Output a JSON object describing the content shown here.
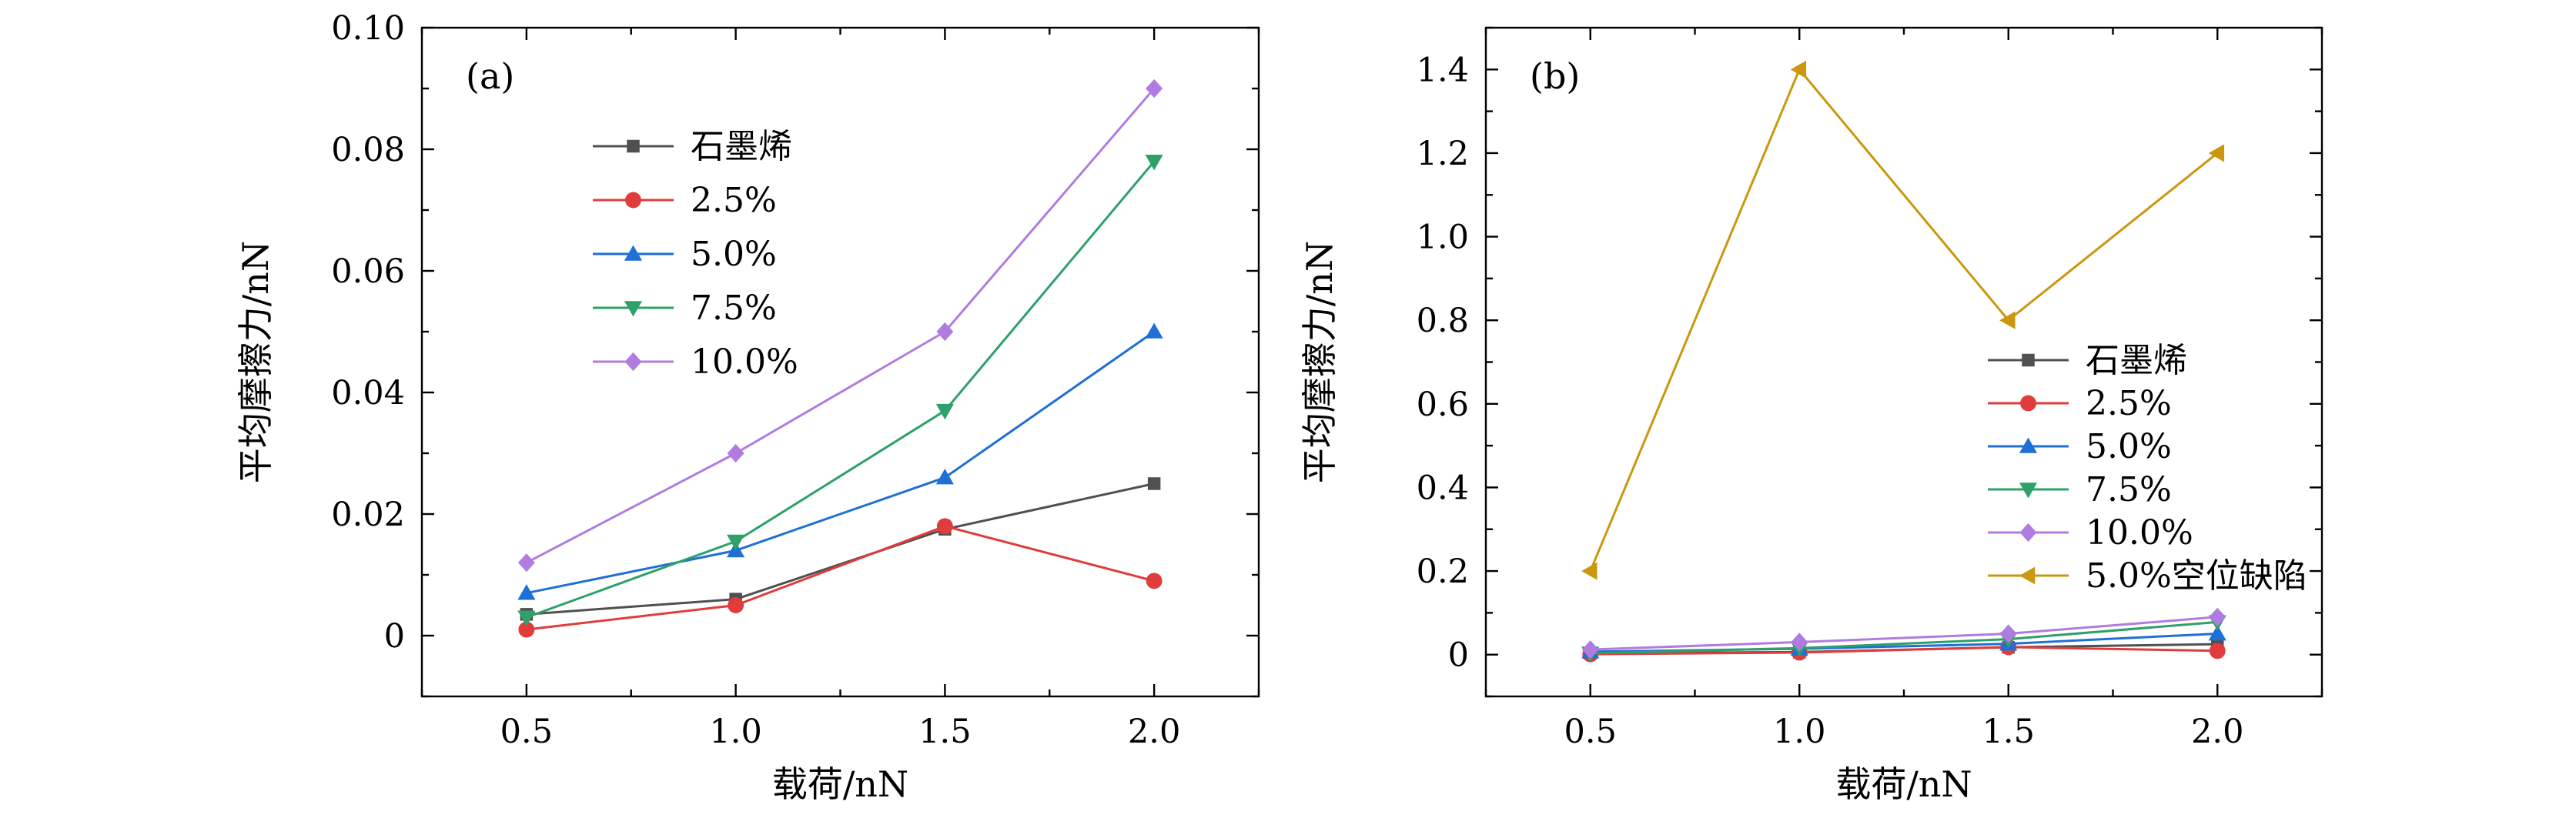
{
  "chart_data": [
    {
      "type": "line",
      "panel_label": "(a)",
      "xlabel": "载荷/nN",
      "ylabel": "平均摩擦力/nN",
      "x": [
        0.5,
        1.0,
        1.5,
        2.0
      ],
      "xticks": [
        "0.5",
        "1.0",
        "1.5",
        "2.0"
      ],
      "xlim": [
        0.25,
        2.25
      ],
      "yticks": [
        "0",
        "0.02",
        "0.04",
        "0.06",
        "0.08",
        "0.10"
      ],
      "ytick_values": [
        0,
        0.02,
        0.04,
        0.06,
        0.08,
        0.1
      ],
      "ylim": [
        -0.01,
        0.1
      ],
      "legend_position": "top-left",
      "series": [
        {
          "name": "石墨烯",
          "values": [
            0.0035,
            0.006,
            0.0175,
            0.025
          ],
          "color": "#505050",
          "marker": "square"
        },
        {
          "name": "2.5%",
          "values": [
            0.001,
            0.005,
            0.018,
            0.009
          ],
          "color": "#e03c3c",
          "marker": "circle"
        },
        {
          "name": "5.0%",
          "values": [
            0.007,
            0.014,
            0.026,
            0.05
          ],
          "color": "#1f6fd6",
          "marker": "triangle-up"
        },
        {
          "name": "7.5%",
          "values": [
            0.003,
            0.0155,
            0.037,
            0.078
          ],
          "color": "#2ea06a",
          "marker": "triangle-down"
        },
        {
          "name": "10.0%",
          "values": [
            0.012,
            0.03,
            0.05,
            0.09
          ],
          "color": "#b07ce0",
          "marker": "diamond"
        }
      ]
    },
    {
      "type": "line",
      "panel_label": "(b)",
      "xlabel": "载荷/nN",
      "ylabel": "平均摩擦力/nN",
      "x": [
        0.5,
        1.0,
        1.5,
        2.0
      ],
      "xticks": [
        "0.5",
        "1.0",
        "1.5",
        "2.0"
      ],
      "xlim": [
        0.25,
        2.25
      ],
      "yticks": [
        "0",
        "0.2",
        "0.4",
        "0.6",
        "0.8",
        "1.0",
        "1.2",
        "1.4"
      ],
      "ytick_values": [
        0,
        0.2,
        0.4,
        0.6,
        0.8,
        1.0,
        1.2,
        1.4
      ],
      "ylim": [
        -0.1,
        1.5
      ],
      "legend_position": "center-right",
      "series": [
        {
          "name": "石墨烯",
          "values": [
            0.0035,
            0.006,
            0.0175,
            0.025
          ],
          "color": "#505050",
          "marker": "square"
        },
        {
          "name": "2.5%",
          "values": [
            0.001,
            0.005,
            0.018,
            0.009
          ],
          "color": "#e03c3c",
          "marker": "circle"
        },
        {
          "name": "5.0%",
          "values": [
            0.007,
            0.014,
            0.026,
            0.05
          ],
          "color": "#1f6fd6",
          "marker": "triangle-up"
        },
        {
          "name": "7.5%",
          "values": [
            0.003,
            0.0155,
            0.037,
            0.078
          ],
          "color": "#2ea06a",
          "marker": "triangle-down"
        },
        {
          "name": "10.0%",
          "values": [
            0.012,
            0.03,
            0.05,
            0.09
          ],
          "color": "#b07ce0",
          "marker": "diamond"
        },
        {
          "name": "5.0%空位缺陷",
          "values": [
            0.2,
            1.4,
            0.8,
            1.2
          ],
          "color": "#c9980e",
          "marker": "triangle-left"
        }
      ]
    }
  ]
}
